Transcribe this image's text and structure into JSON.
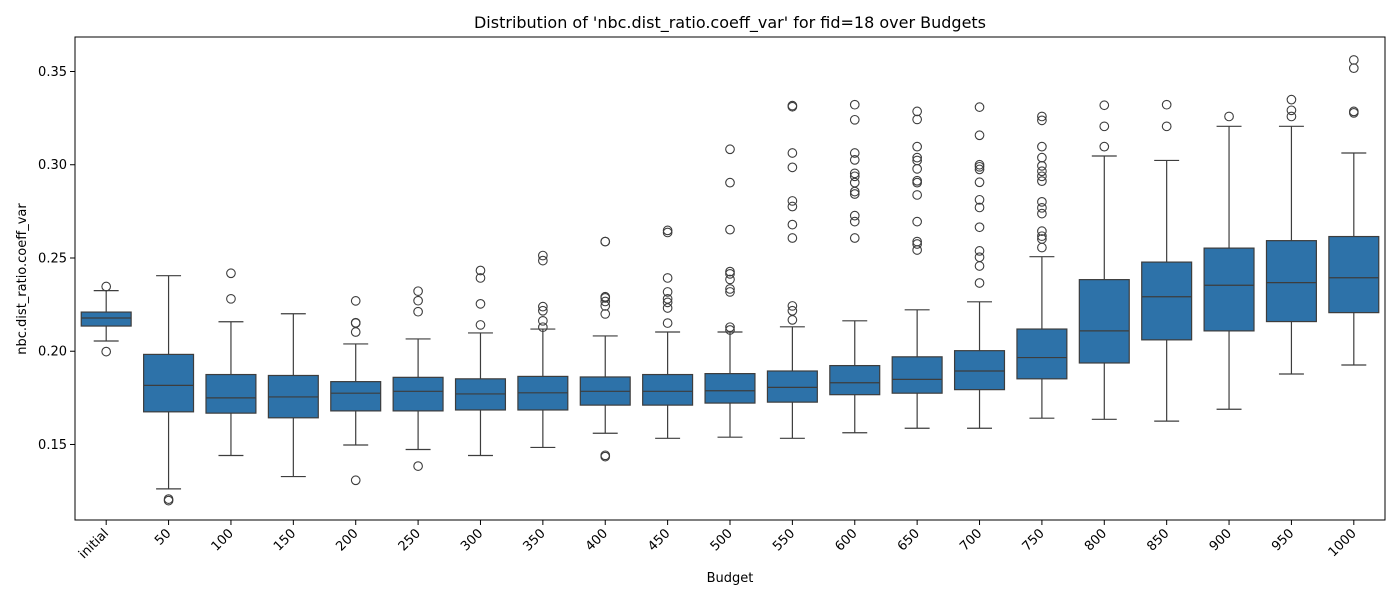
{
  "chart_data": {
    "type": "box",
    "title": "Distribution of 'nbc.dist_ratio.coeff_var' for fid=18 over Budgets",
    "xlabel": "Budget",
    "ylabel": "nbc.dist_ratio.coeff_var",
    "ylim": [
      0.1095,
      0.3685
    ],
    "yticks": [
      0.15,
      0.2,
      0.25,
      0.3,
      0.35
    ],
    "ytick_labels": [
      "0.15",
      "0.20",
      "0.25",
      "0.30",
      "0.35"
    ],
    "grid": false,
    "box_color": "#2d72a9",
    "line_color": "#3d3d3d",
    "categories": [
      "initial",
      "50",
      "100",
      "150",
      "200",
      "250",
      "300",
      "350",
      "400",
      "450",
      "500",
      "550",
      "600",
      "650",
      "700",
      "750",
      "800",
      "850",
      "900",
      "950",
      "1000"
    ],
    "boxes": [
      {
        "whislo": 0.2055,
        "q1": 0.2135,
        "med": 0.2178,
        "q3": 0.221,
        "whishi": 0.2325,
        "fliers": [
          0.2347,
          0.1998
        ]
      },
      {
        "whislo": 0.1262,
        "q1": 0.1675,
        "med": 0.1817,
        "q3": 0.1983,
        "whishi": 0.2405,
        "fliers": [
          0.1207,
          0.1199
        ]
      },
      {
        "whislo": 0.1441,
        "q1": 0.1668,
        "med": 0.175,
        "q3": 0.1875,
        "whishi": 0.2158,
        "fliers": [
          0.2418,
          0.2281
        ]
      },
      {
        "whislo": 0.1328,
        "q1": 0.1643,
        "med": 0.1755,
        "q3": 0.187,
        "whishi": 0.2201,
        "fliers": []
      },
      {
        "whislo": 0.1497,
        "q1": 0.168,
        "med": 0.1775,
        "q3": 0.1837,
        "whishi": 0.2039,
        "fliers": [
          0.227,
          0.2153,
          0.2151,
          0.2103,
          0.1308
        ]
      },
      {
        "whislo": 0.1473,
        "q1": 0.168,
        "med": 0.1785,
        "q3": 0.186,
        "whishi": 0.2066,
        "fliers": [
          0.2322,
          0.2271,
          0.2212,
          0.1384
        ]
      },
      {
        "whislo": 0.1441,
        "q1": 0.1685,
        "med": 0.1771,
        "q3": 0.1852,
        "whishi": 0.2098,
        "fliers": [
          0.2433,
          0.2393,
          0.2254,
          0.2141
        ]
      },
      {
        "whislo": 0.1484,
        "q1": 0.1685,
        "med": 0.1777,
        "q3": 0.1865,
        "whishi": 0.2119,
        "fliers": [
          0.2513,
          0.2486,
          0.2239,
          0.2217,
          0.2163,
          0.2129
        ]
      },
      {
        "whislo": 0.156,
        "q1": 0.1711,
        "med": 0.1785,
        "q3": 0.1862,
        "whishi": 0.2082,
        "fliers": [
          0.2588,
          0.2588,
          0.2292,
          0.2286,
          0.2267,
          0.2243,
          0.22,
          0.1442,
          0.1435
        ]
      },
      {
        "whislo": 0.1533,
        "q1": 0.1711,
        "med": 0.1785,
        "q3": 0.1875,
        "whishi": 0.2103,
        "fliers": [
          0.2648,
          0.2637,
          0.2393,
          0.2318,
          0.2281,
          0.2262,
          0.2232,
          0.2151
        ]
      },
      {
        "whislo": 0.1539,
        "q1": 0.1722,
        "med": 0.1788,
        "q3": 0.188,
        "whishi": 0.2103,
        "fliers": [
          0.3083,
          0.2904,
          0.2652,
          0.2427,
          0.2415,
          0.2385,
          0.2334,
          0.2318,
          0.2129,
          0.2114
        ]
      },
      {
        "whislo": 0.1533,
        "q1": 0.1727,
        "med": 0.1806,
        "q3": 0.1894,
        "whishi": 0.2131,
        "fliers": [
          0.3317,
          0.3311,
          0.3063,
          0.2986,
          0.2806,
          0.2776,
          0.2679,
          0.2607,
          0.2243,
          0.2217,
          0.2168
        ]
      },
      {
        "whislo": 0.1563,
        "q1": 0.1767,
        "med": 0.1831,
        "q3": 0.1923,
        "whishi": 0.2163,
        "fliers": [
          0.3322,
          0.3241,
          0.3063,
          0.3026,
          0.2954,
          0.2938,
          0.2904,
          0.2856,
          0.2843,
          0.2727,
          0.2695,
          0.2607
        ]
      },
      {
        "whislo": 0.1587,
        "q1": 0.1775,
        "med": 0.1849,
        "q3": 0.197,
        "whishi": 0.2222,
        "fliers": [
          0.3286,
          0.3243,
          0.3097,
          0.3038,
          0.3023,
          0.2978,
          0.2914,
          0.2904,
          0.2838,
          0.2695,
          0.2588,
          0.2575,
          0.2543
        ]
      },
      {
        "whislo": 0.1587,
        "q1": 0.1794,
        "med": 0.1894,
        "q3": 0.2003,
        "whishi": 0.2265,
        "fliers": [
          0.3309,
          0.3158,
          0.3,
          0.2989,
          0.2975,
          0.2906,
          0.2812,
          0.2771,
          0.2665,
          0.2538,
          0.2504,
          0.2457,
          0.2366
        ]
      },
      {
        "whislo": 0.1641,
        "q1": 0.1852,
        "med": 0.1966,
        "q3": 0.2119,
        "whishi": 0.2507,
        "fliers": [
          0.3259,
          0.3238,
          0.3097,
          0.3038,
          0.2994,
          0.2965,
          0.2938,
          0.2912,
          0.2801,
          0.2769,
          0.2738,
          0.2644,
          0.2617,
          0.2602,
          0.2556
        ]
      },
      {
        "whislo": 0.1635,
        "q1": 0.1937,
        "med": 0.2109,
        "q3": 0.2384,
        "whishi": 0.3047,
        "fliers": [
          0.3319,
          0.3206,
          0.3097
        ]
      },
      {
        "whislo": 0.1625,
        "q1": 0.2061,
        "med": 0.2292,
        "q3": 0.2478,
        "whishi": 0.3023,
        "fliers": [
          0.3322,
          0.3206
        ]
      },
      {
        "whislo": 0.1689,
        "q1": 0.2109,
        "med": 0.2354,
        "q3": 0.2553,
        "whishi": 0.3206,
        "fliers": [
          0.3259
        ]
      },
      {
        "whislo": 0.1878,
        "q1": 0.2159,
        "med": 0.2368,
        "q3": 0.2593,
        "whishi": 0.3206,
        "fliers": [
          0.3349,
          0.3292,
          0.3259
        ]
      },
      {
        "whislo": 0.1926,
        "q1": 0.2207,
        "med": 0.2394,
        "q3": 0.2615,
        "whishi": 0.3063,
        "fliers": [
          0.3562,
          0.3518,
          0.3286,
          0.3278
        ]
      }
    ]
  }
}
